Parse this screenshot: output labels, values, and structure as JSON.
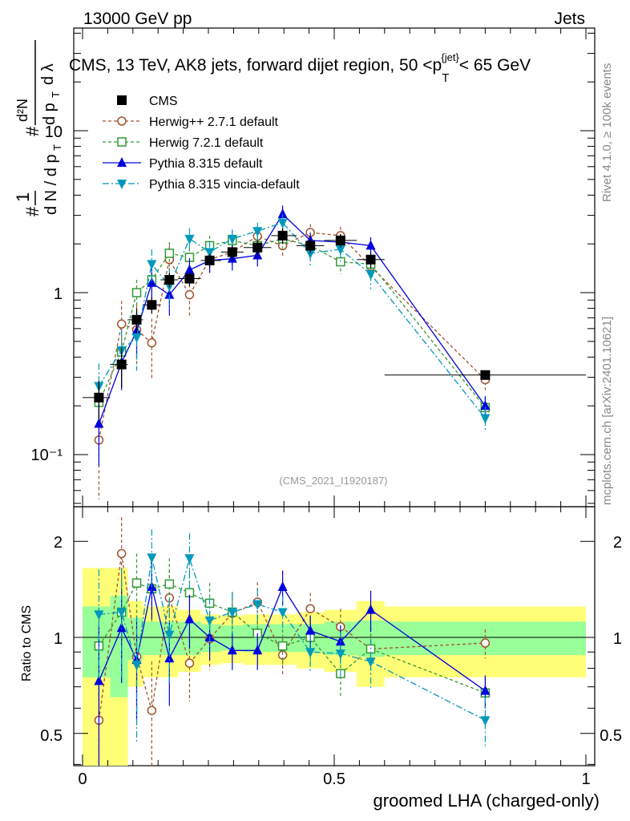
{
  "header": {
    "energy": "13000 GeV pp",
    "category": "Jets",
    "rivet": "Rivet 4.1.0, ≥ 100k events",
    "site": "mcplots.cern.ch [arXiv:2401.10621]",
    "analysis": "(CMS_2021_I1920187)"
  },
  "chart_data": {
    "type": "line",
    "title": "CMS, 13 TeV, AK8 jets, forward dijet region, 50 <p",
    "title_sub": "T",
    "title_sup": "{jet}",
    "title_end": "< 65 GeV",
    "ylabel": "#(1/dN/dp_T)(#d²N/dp_T dλ)",
    "xlabel": "groomed LHA (charged-only)",
    "ratio_ylabel": "Ratio to CMS",
    "xlim": [
      0,
      1
    ],
    "ylim": [
      0.05,
      50
    ],
    "ratio_ylim": [
      0.35,
      2.3
    ],
    "x_ticks": [
      "0",
      "0.5",
      "1"
    ],
    "y_ticks": [
      "10⁻¹",
      "1",
      "10"
    ],
    "ratio_ticks": [
      "0.5",
      "1",
      "2"
    ],
    "x": [
      0.0325,
      0.0775,
      0.1075,
      0.1375,
      0.1725,
      0.2125,
      0.2525,
      0.2975,
      0.3475,
      0.3975,
      0.4525,
      0.5125,
      0.5725,
      0.8
    ],
    "bins": [
      [
        0,
        0.055
      ],
      [
        0.055,
        0.09
      ],
      [
        0.09,
        0.12
      ],
      [
        0.12,
        0.155
      ],
      [
        0.155,
        0.19
      ],
      [
        0.19,
        0.235
      ],
      [
        0.235,
        0.275
      ],
      [
        0.275,
        0.32
      ],
      [
        0.32,
        0.375
      ],
      [
        0.375,
        0.425
      ],
      [
        0.425,
        0.48
      ],
      [
        0.48,
        0.545
      ],
      [
        0.545,
        0.6
      ],
      [
        0.6,
        1.0
      ]
    ],
    "band_stat": [
      0.25,
      0.35,
      0.15,
      0.12,
      0.12,
      0.12,
      0.1,
      0.09,
      0.1,
      0.1,
      0.1,
      0.12,
      0.13,
      0.12
    ],
    "band_total": [
      0.65,
      0.65,
      0.3,
      0.25,
      0.25,
      0.22,
      0.18,
      0.17,
      0.18,
      0.18,
      0.2,
      0.22,
      0.3,
      0.25
    ],
    "series": [
      {
        "name": "CMS",
        "color": "#000000",
        "marker": "square-filled",
        "dash": "",
        "line": false,
        "values": [
          0.225,
          0.36,
          0.68,
          0.84,
          1.2,
          1.22,
          1.58,
          1.78,
          1.9,
          2.25,
          1.95,
          2.1,
          1.6,
          0.31
        ],
        "errors": [
          0.06,
          0.1,
          0.12,
          0.1,
          0.12,
          0.12,
          0.15,
          0.18,
          0.2,
          0.25,
          0.2,
          0.2,
          0.18,
          0.02
        ]
      },
      {
        "name": "Herwig++ 2.7.1 default",
        "color": "#a0522d",
        "marker": "circle-open",
        "dash": "4,3",
        "line": true,
        "values": [
          0.123,
          0.64,
          0.59,
          0.49,
          1.6,
          0.97,
          1.6,
          1.78,
          2.23,
          1.95,
          2.35,
          2.25,
          1.45,
          0.29
        ],
        "errors": [
          0.07,
          0.25,
          0.25,
          0.2,
          0.35,
          0.25,
          0.3,
          0.35,
          0.3,
          0.3,
          0.3,
          0.3,
          0.25,
          0.04
        ],
        "ratio": [
          0.55,
          1.83,
          0.87,
          0.59,
          1.33,
          0.83,
          0.99,
          1.19,
          1.29,
          0.88,
          1.23,
          1.08,
          0.92,
          0.96
        ],
        "ratio_errors": [
          0.3,
          0.55,
          0.35,
          0.25,
          0.3,
          0.2,
          0.2,
          0.2,
          0.2,
          0.12,
          0.15,
          0.15,
          0.15,
          0.1
        ]
      },
      {
        "name": "Herwig 7.2.1 default",
        "color": "#339933",
        "marker": "square-open",
        "dash": "4,3",
        "line": true,
        "values": [
          0.21,
          0.43,
          1.0,
          1.2,
          1.75,
          1.65,
          1.95,
          2.1,
          1.95,
          2.15,
          1.95,
          1.55,
          1.5,
          0.195
        ],
        "errors": [
          0.05,
          0.1,
          0.2,
          0.25,
          0.3,
          0.25,
          0.3,
          0.3,
          0.3,
          0.3,
          0.3,
          0.25,
          0.2,
          0.03
        ],
        "ratio": [
          0.94,
          1.2,
          1.48,
          1.42,
          1.47,
          1.38,
          1.28,
          1.2,
          1.03,
          0.94,
          1.0,
          0.77,
          0.92,
          0.67
        ],
        "ratio_errors": [
          0.3,
          0.35,
          0.35,
          0.3,
          0.3,
          0.25,
          0.2,
          0.18,
          0.15,
          0.12,
          0.15,
          0.12,
          0.15,
          0.08
        ]
      },
      {
        "name": "Pythia 8.315 default",
        "color": "#0000dd",
        "marker": "triangle-up",
        "dash": "",
        "line": true,
        "values": [
          0.155,
          0.37,
          0.58,
          1.15,
          0.97,
          1.38,
          1.58,
          1.62,
          1.7,
          3.05,
          2.1,
          2.05,
          1.95,
          0.2
        ],
        "errors": [
          0.07,
          0.12,
          0.18,
          0.25,
          0.25,
          0.25,
          0.25,
          0.25,
          0.25,
          0.4,
          0.25,
          0.25,
          0.25,
          0.03
        ],
        "ratio": [
          0.73,
          1.07,
          0.85,
          1.44,
          0.86,
          1.14,
          1.0,
          0.91,
          0.91,
          1.44,
          1.05,
          0.97,
          1.22,
          0.68
        ],
        "ratio_errors": [
          0.35,
          0.35,
          0.3,
          0.3,
          0.25,
          0.22,
          0.15,
          0.12,
          0.12,
          0.18,
          0.12,
          0.12,
          0.18,
          0.08
        ]
      },
      {
        "name": "Pythia 8.315 vincia-default",
        "color": "#0099bb",
        "marker": "triangle-down",
        "dash": "8,3,2,3",
        "line": true,
        "values": [
          0.265,
          0.44,
          0.53,
          1.5,
          1.1,
          2.15,
          1.78,
          2.15,
          2.4,
          2.7,
          1.75,
          1.85,
          1.3,
          0.168
        ],
        "errors": [
          0.1,
          0.15,
          0.2,
          0.35,
          0.3,
          0.35,
          0.3,
          0.3,
          0.3,
          0.35,
          0.3,
          0.3,
          0.25,
          0.03
        ],
        "ratio": [
          1.18,
          1.2,
          0.82,
          1.78,
          1.02,
          1.77,
          1.13,
          1.2,
          1.27,
          1.2,
          0.9,
          0.89,
          0.84,
          0.55
        ],
        "ratio_errors": [
          0.45,
          0.45,
          0.35,
          0.4,
          0.3,
          0.35,
          0.2,
          0.18,
          0.15,
          0.15,
          0.12,
          0.15,
          0.15,
          0.1
        ]
      }
    ]
  }
}
